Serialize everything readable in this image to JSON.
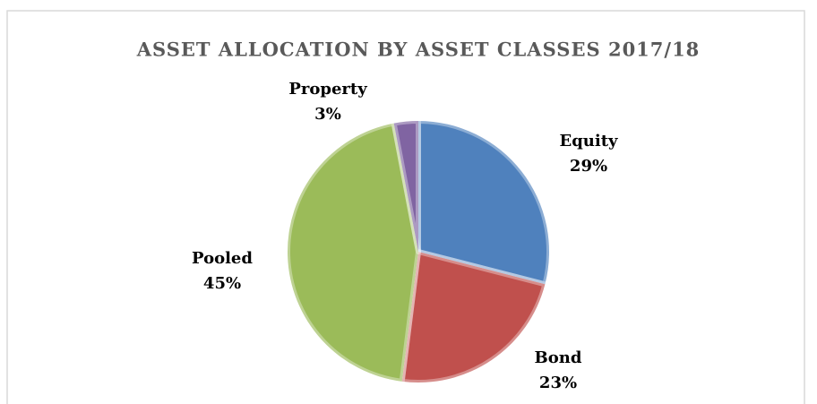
{
  "chart_data": {
    "type": "pie",
    "title": "ASSET ALLOCATION BY ASSET CLASSES 2017/18",
    "categories": [
      "Equity",
      "Bond",
      "Pooled",
      "Property"
    ],
    "values": [
      29,
      23,
      45,
      3
    ],
    "value_labels": [
      "29%",
      "23%",
      "45%",
      "3%"
    ],
    "colors": [
      "#4f81bd",
      "#c0504d",
      "#9bbb59",
      "#8064a2"
    ]
  }
}
